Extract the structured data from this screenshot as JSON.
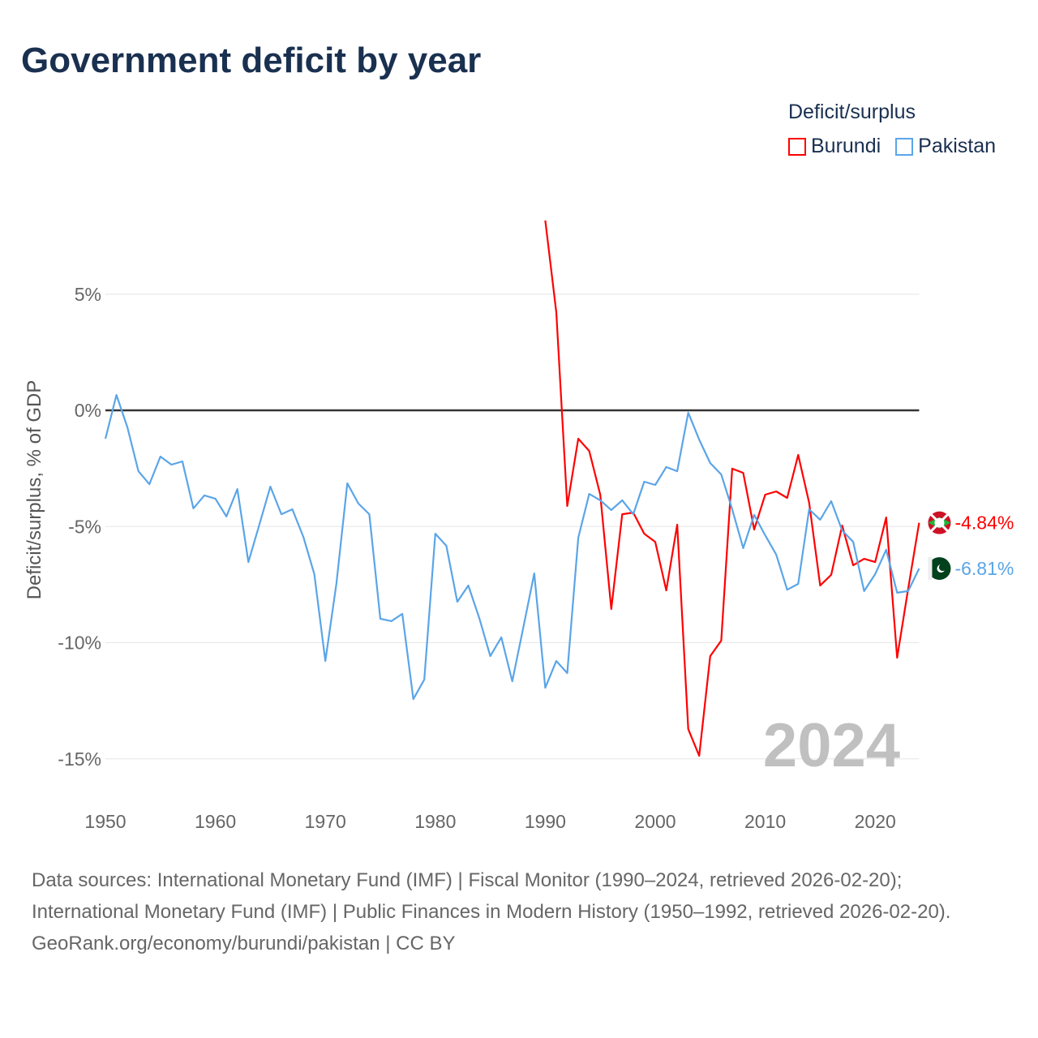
{
  "title": "Government deficit by year",
  "legend": {
    "title": "Deficit/surplus",
    "items": [
      {
        "name": "Burundi",
        "color": "#ff0000"
      },
      {
        "name": "Pakistan",
        "color": "#5aa5e8"
      }
    ]
  },
  "year_watermark": "2024",
  "footer": {
    "sources": "Data sources: International Monetary Fund (IMF) | Fiscal Monitor (1990–2024, retrieved 2026-02-20); International Monetary Fund (IMF) | Public Finances in Modern History (1950–1992, retrieved 2026-02-20).",
    "link": "GeoRank.org/economy/burundi/pakistan | CC BY"
  },
  "chart_data": {
    "type": "line",
    "title": "Government deficit by year",
    "xlabel": "",
    "ylabel": "Deficit/surplus, % of GDP",
    "xlim": [
      1950,
      2024
    ],
    "ylim": [
      -16,
      9
    ],
    "x_ticks": [
      1950,
      1960,
      1970,
      1980,
      1990,
      2000,
      2010,
      2020
    ],
    "x_tick_labels": [
      "1950",
      "1960",
      "1970",
      "1980",
      "1990",
      "2000",
      "2010",
      "2020"
    ],
    "y_ticks": [
      5,
      0,
      -5,
      -10,
      -15
    ],
    "y_tick_labels": [
      "5%",
      "0%",
      "-5%",
      "-10%",
      "-15%"
    ],
    "grid": true,
    "legend_position": "top-right",
    "series": [
      {
        "name": "Burundi",
        "color": "#ff0000",
        "start_year": 1990,
        "end_label": "-4.84%",
        "values": [
          8.17,
          4.22,
          -4.12,
          -1.22,
          -1.75,
          -3.63,
          -8.55,
          -4.47,
          -4.4,
          -5.31,
          -5.66,
          -7.75,
          -4.92,
          -13.72,
          -14.87,
          -10.58,
          -9.91,
          -2.51,
          -2.69,
          -5.13,
          -3.63,
          -3.49,
          -3.77,
          -1.92,
          -3.98,
          -7.54,
          -7.08,
          -4.96,
          -6.67,
          -6.39,
          -6.53,
          -4.61,
          -10.65,
          -7.68,
          -4.84
        ]
      },
      {
        "name": "Pakistan",
        "color": "#5aa5e8",
        "start_year": 1950,
        "end_label": "-6.81%",
        "values": [
          -1.22,
          0.66,
          -0.73,
          -2.62,
          -3.18,
          -1.99,
          -2.34,
          -2.2,
          -4.22,
          -3.66,
          -3.8,
          -4.57,
          -3.39,
          -6.53,
          -4.92,
          -3.28,
          -4.47,
          -4.26,
          -5.45,
          -7.05,
          -10.79,
          -7.47,
          -3.14,
          -4.01,
          -4.47,
          -8.97,
          -9.07,
          -8.76,
          -12.43,
          -11.59,
          -5.31,
          -5.83,
          -8.24,
          -7.54,
          -8.94,
          -10.58,
          -9.77,
          -11.66,
          -9.35,
          -7.02,
          -11.94,
          -10.79,
          -11.31,
          -5.48,
          -3.6,
          -3.87,
          -4.29,
          -3.87,
          -4.47,
          -3.07,
          -3.21,
          -2.44,
          -2.62,
          -0.1,
          -1.26,
          -2.27,
          -2.76,
          -4.26,
          -5.93,
          -4.5,
          -5.38,
          -6.21,
          -7.72,
          -7.47,
          -4.26,
          -4.71,
          -3.91,
          -5.17,
          -5.66,
          -7.78,
          -7.05,
          -6.0,
          -7.85,
          -7.78,
          -6.81
        ]
      }
    ]
  }
}
